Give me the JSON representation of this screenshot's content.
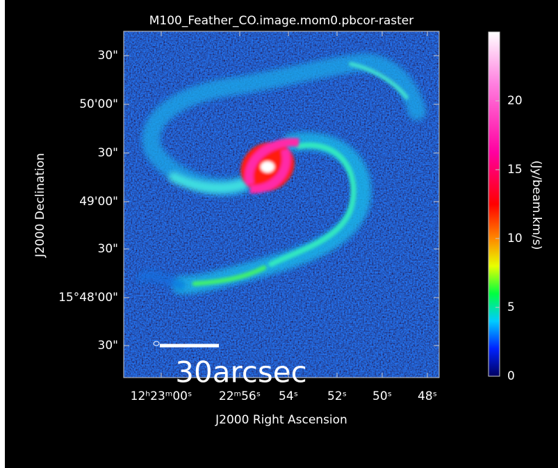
{
  "title": "M100_Feather_CO.image.mom0.pbcor-raster",
  "x_axis_label": "J2000 Right Ascension",
  "y_axis_label": "J2000 Declination",
  "x_tick_labels": [
    "12ʰ23ᵐ00ˢ",
    "22ᵐ56ˢ",
    "54ˢ",
    "52ˢ",
    "50ˢ",
    "48ˢ"
  ],
  "y_tick_labels": [
    "30\"",
    "50'00\"",
    "30\"",
    "49'00\"",
    "30\"",
    "15°48'00\"",
    "30\""
  ],
  "colorbar": {
    "label": "(Jy/beam.km/s)",
    "lim": [
      0,
      25
    ],
    "ticks": [
      0,
      5,
      10,
      15,
      20
    ]
  },
  "scale_bar_label": "30arcsec"
}
